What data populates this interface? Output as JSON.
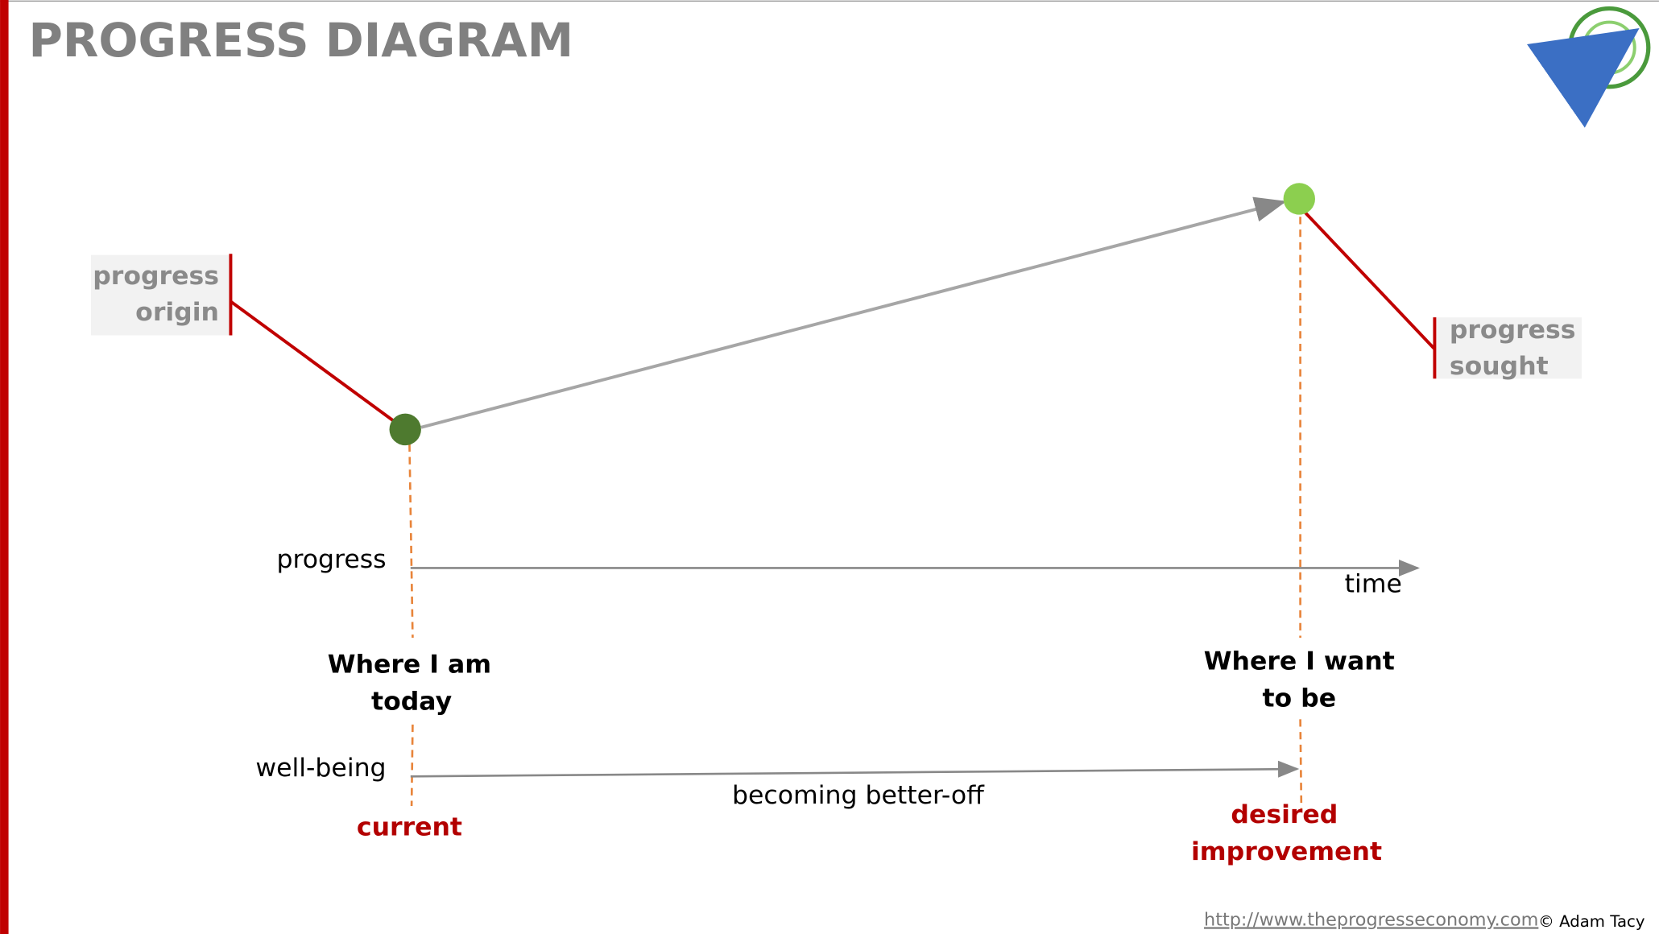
{
  "header": {
    "title": "PROGRESS DIAGRAM"
  },
  "labels": {
    "progress_origin": [
      "progress",
      "origin"
    ],
    "progress_sought": [
      "progress",
      "sought"
    ],
    "progress_axis": "progress",
    "time": "time",
    "where_i_am": [
      "Where I am",
      "today"
    ],
    "where_i_want": [
      "Where I want",
      "to be"
    ],
    "wellbeing_axis": "well-being",
    "becoming": "becoming better-off",
    "current": "current",
    "desired": [
      "desired",
      "improvement"
    ]
  },
  "footer": {
    "url": "http://www.theprogresseconomy.com",
    "copyright": "© Adam Tacy"
  }
}
